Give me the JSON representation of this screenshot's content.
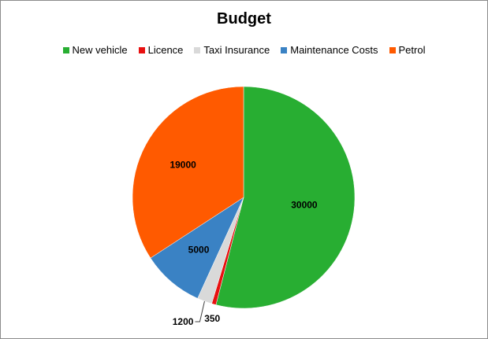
{
  "chart_data": {
    "type": "pie",
    "title": "Budget",
    "legend_position": "top",
    "categories": [
      "New vehicle",
      "Licence",
      "Taxi Insurance",
      "Maintenance Costs",
      "Petrol"
    ],
    "values": [
      30000,
      350,
      1200,
      5000,
      19000
    ],
    "colors": [
      "#28ae32",
      "#e81010",
      "#d9d9d9",
      "#3a82c4",
      "#ff5a00"
    ],
    "data_labels": [
      "30000",
      "350",
      "1200",
      "5000",
      "19000"
    ]
  }
}
